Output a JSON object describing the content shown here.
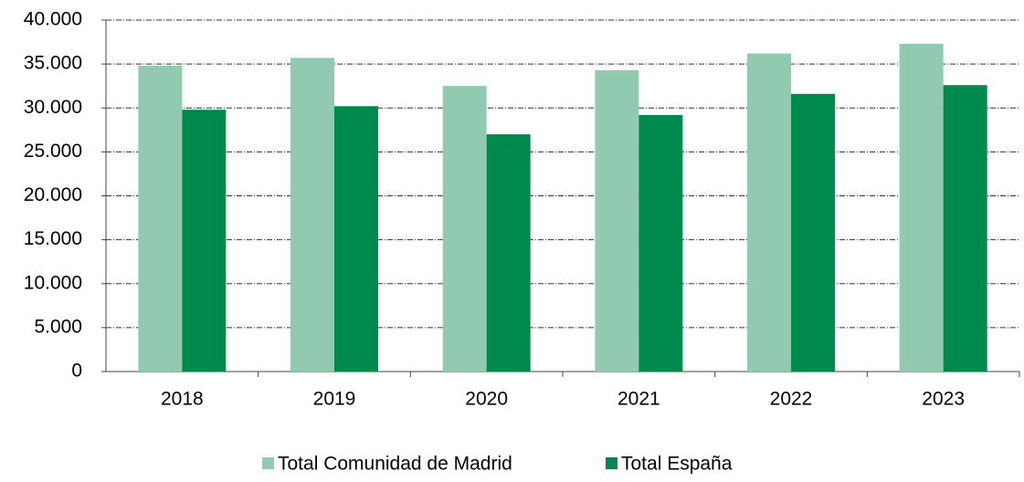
{
  "chart_data": {
    "type": "bar",
    "categories": [
      "2018",
      "2019",
      "2020",
      "2021",
      "2022",
      "2023"
    ],
    "series": [
      {
        "name": "Total Comunidad de Madrid",
        "color": "#92c9b1",
        "values": [
          34800,
          35700,
          32500,
          34300,
          36200,
          37300
        ]
      },
      {
        "name": "Total España",
        "color": "#00894d",
        "values": [
          29800,
          30200,
          27000,
          29200,
          31600,
          32600
        ]
      }
    ],
    "ylim": [
      0,
      40000
    ],
    "yticks": [
      0,
      {
        "value": 5000,
        "label": "5.000"
      },
      {
        "value": 10000,
        "label": "10.000"
      },
      {
        "value": 15000,
        "label": "15.000"
      },
      {
        "value": 20000,
        "label": "20.000"
      },
      {
        "value": 25000,
        "label": "25.000"
      },
      {
        "value": 30000,
        "label": "30.000"
      },
      {
        "value": 35000,
        "label": "35.000"
      },
      {
        "value": 40000,
        "label": "40.000"
      }
    ],
    "grid": true,
    "legend": "bottom"
  }
}
